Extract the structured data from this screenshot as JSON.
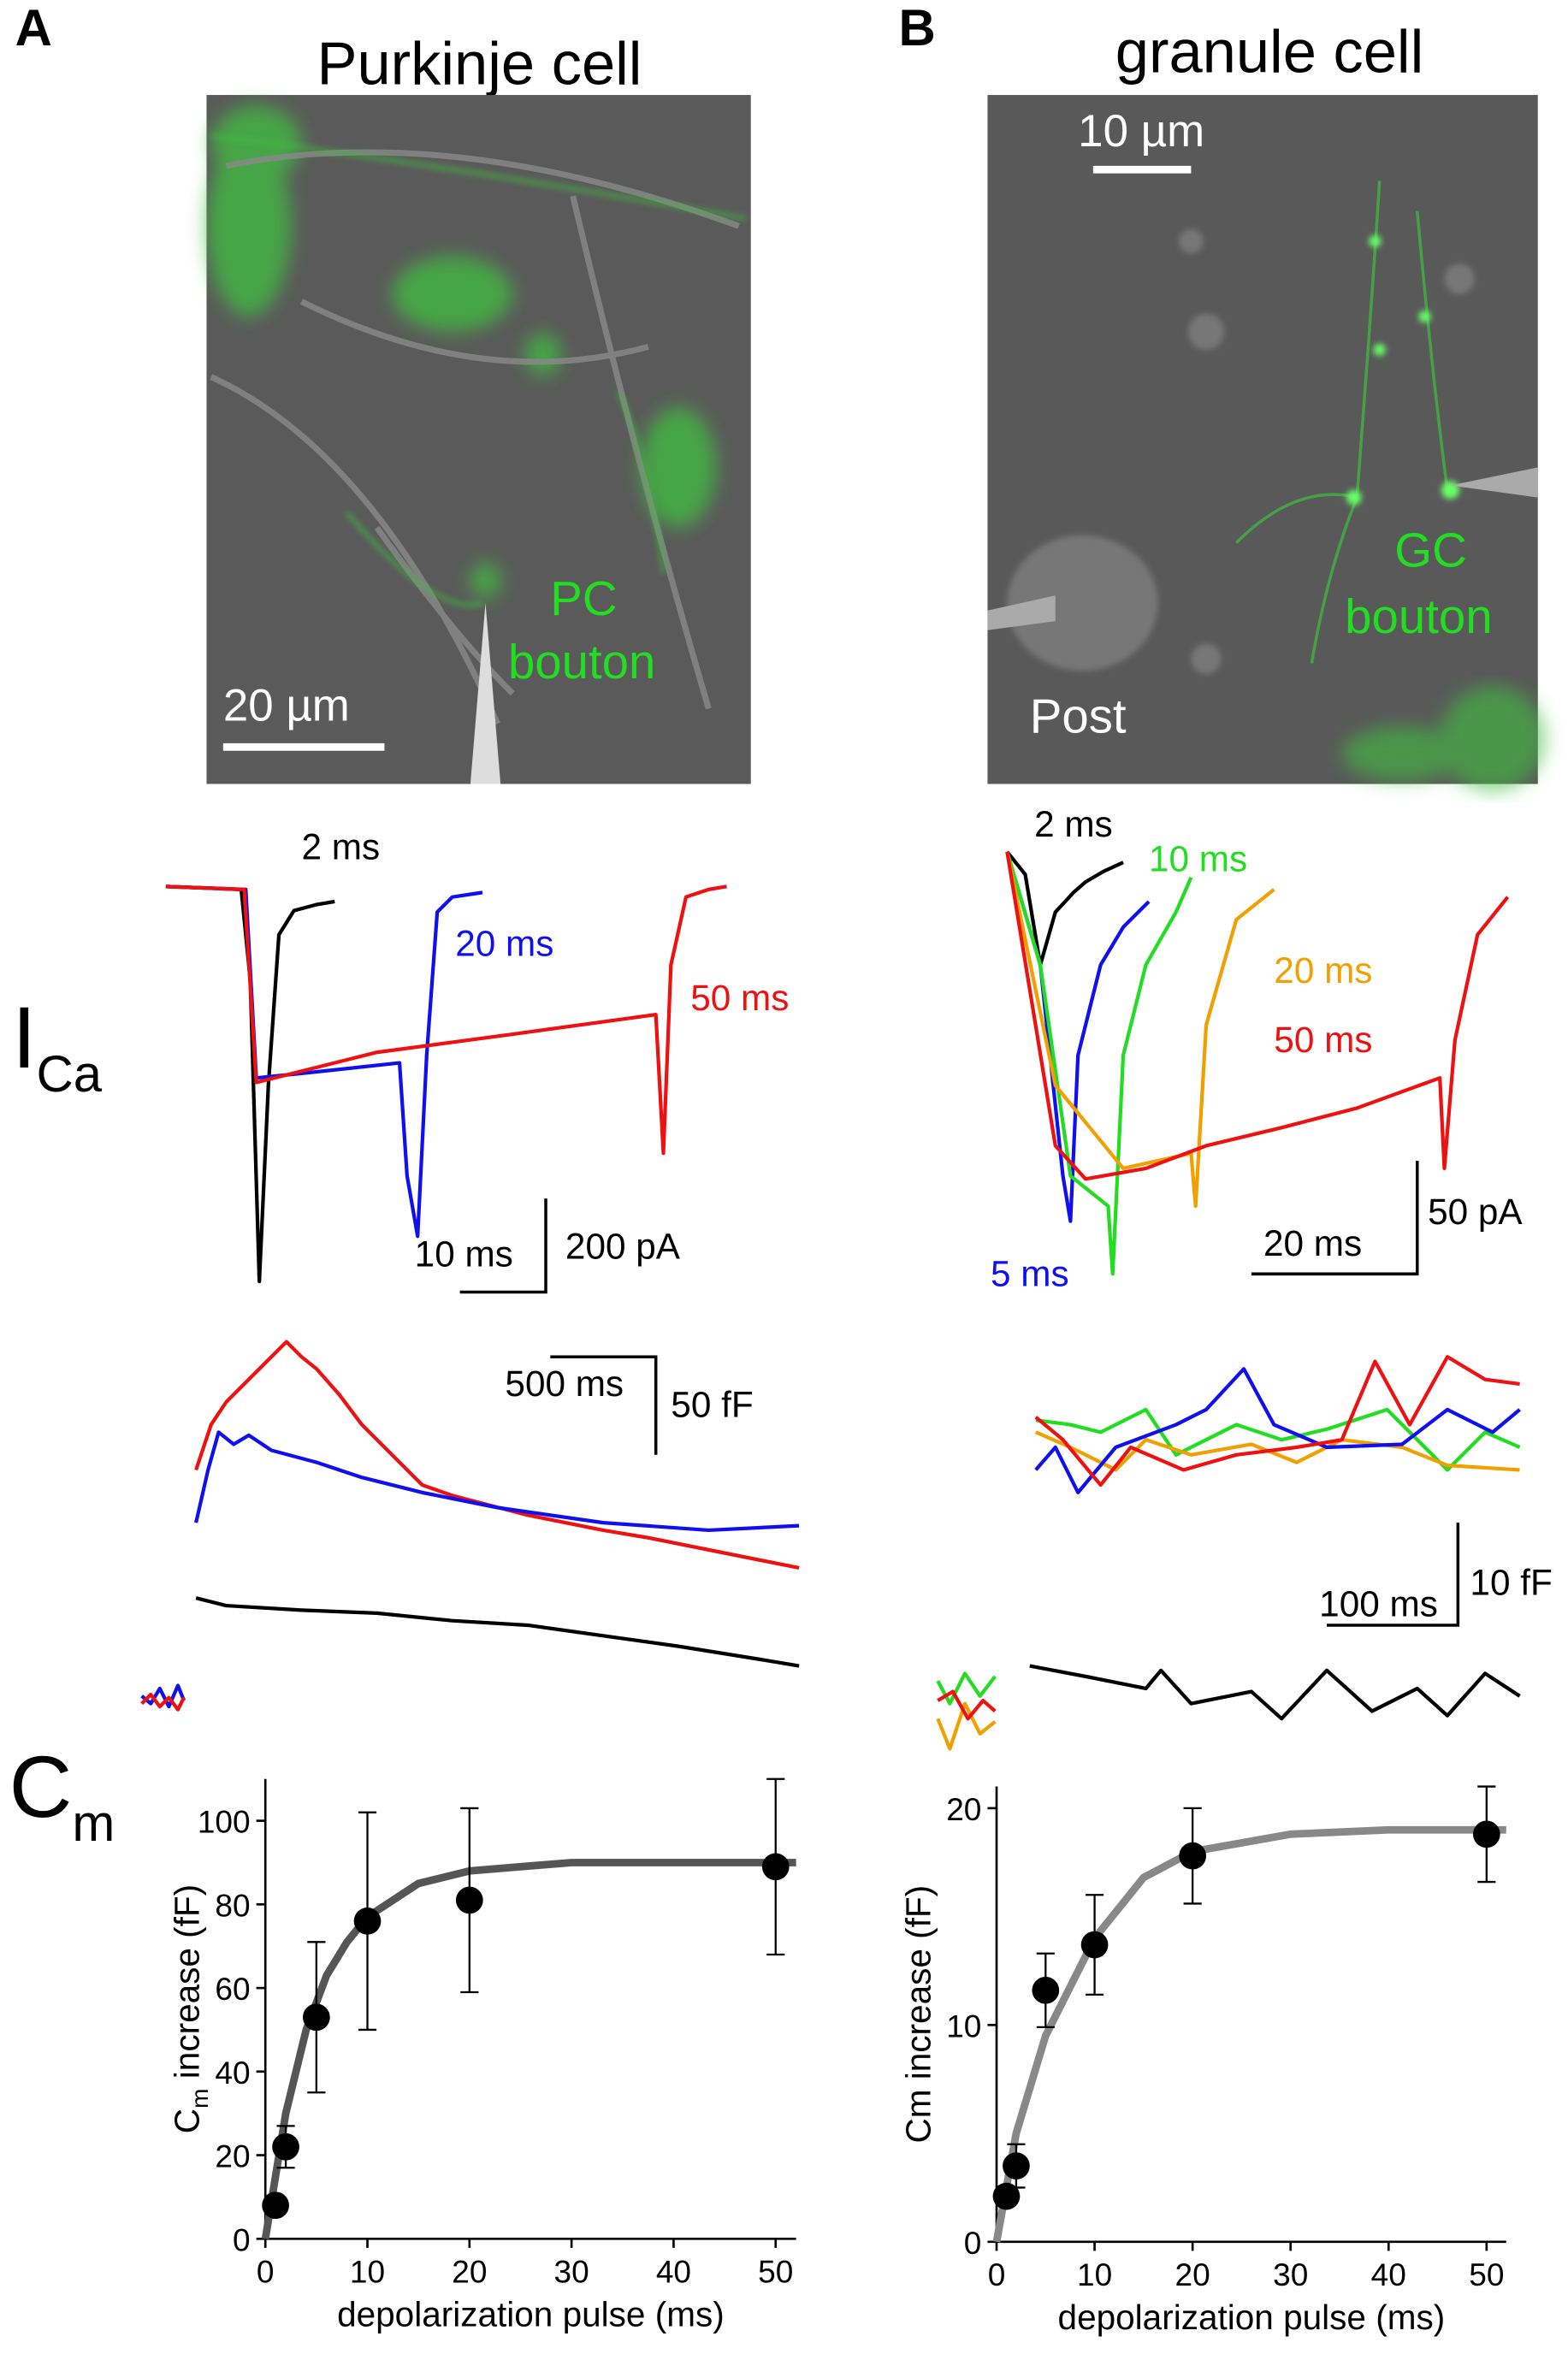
{
  "panels": {
    "A": {
      "letter": "A",
      "title": "Purkinje cell",
      "scale": "20 µm",
      "tag": [
        "PC",
        "bouton"
      ],
      "current_labels": [
        "2 ms",
        "20 ms",
        "50 ms"
      ],
      "current_scale": [
        "10 ms",
        "200 pA"
      ],
      "cap_scale": [
        "500 ms",
        "50 fF"
      ]
    },
    "B": {
      "letter": "B",
      "title": "granule cell",
      "scale": "10 µm",
      "tag": [
        "GC",
        "bouton"
      ],
      "post": "Post",
      "current_labels": [
        "2 ms",
        "10 ms",
        "20 ms",
        "50 ms",
        "5 ms"
      ],
      "current_scale": [
        "20 ms",
        "50 pA"
      ],
      "cap_scale": [
        "100 ms",
        "10 fF"
      ]
    }
  },
  "row_labels": {
    "current": [
      "I",
      "Ca"
    ],
    "capacitance": [
      "C",
      "m"
    ]
  },
  "chart_data": [
    {
      "type": "scatter",
      "x_label": "depolarization pulse (ms)",
      "y_label": [
        "C",
        "m",
        " increase (fF)"
      ],
      "x": [
        1,
        2,
        5,
        10,
        20,
        50
      ],
      "values": [
        8,
        22,
        53,
        76,
        81,
        89
      ],
      "errors": [
        2,
        5,
        18,
        26,
        22,
        21
      ],
      "color": "#000000",
      "fit": {
        "x": [
          0,
          2,
          4,
          6,
          8,
          10,
          15,
          20,
          30,
          40,
          52
        ],
        "y": [
          0,
          30,
          50,
          63,
          71,
          77,
          85,
          88,
          90,
          90,
          90
        ],
        "color": "#555555"
      },
      "xlim": [
        0,
        52
      ],
      "ylim": [
        0,
        110
      ],
      "xticks": [
        0,
        10,
        20,
        30,
        40,
        50
      ],
      "yticks": [
        0,
        20,
        40,
        60,
        80,
        100
      ]
    },
    {
      "type": "scatter",
      "x_label": "depolarization pulse (ms)",
      "y_label": [
        "Cm increase (fF)"
      ],
      "x": [
        1,
        2,
        5,
        10,
        20,
        50
      ],
      "values": [
        2.1,
        3.5,
        11.6,
        13.7,
        17.8,
        18.8
      ],
      "errors": [
        0.4,
        1.0,
        1.7,
        2.3,
        2.2,
        2.2
      ],
      "color": "#000000",
      "fit": {
        "x": [
          0,
          2,
          5,
          10,
          15,
          20,
          30,
          40,
          52
        ],
        "y": [
          0,
          5,
          9.5,
          14,
          16.8,
          18,
          18.8,
          19,
          19
        ],
        "color": "#888888"
      },
      "xlim": [
        0,
        52
      ],
      "ylim": [
        0,
        21
      ],
      "xticks": [
        0,
        10,
        20,
        30,
        40,
        50
      ],
      "yticks": [
        0,
        10,
        20
      ]
    }
  ]
}
